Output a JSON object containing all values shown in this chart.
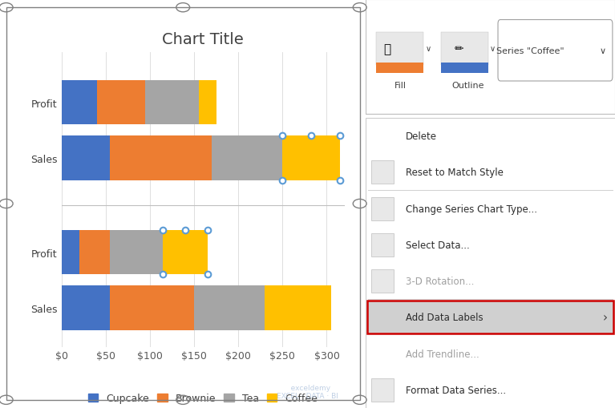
{
  "title": "Chart Title",
  "series": {
    "Cupcake": [
      40,
      55,
      20,
      55
    ],
    "Brownie": [
      55,
      115,
      35,
      95
    ],
    "Tea": [
      60,
      80,
      60,
      80
    ],
    "Coffee": [
      20,
      65,
      50,
      75
    ]
  },
  "colors": {
    "Cupcake": "#4472C4",
    "Brownie": "#ED7D31",
    "Tea": "#A5A5A5",
    "Coffee": "#FFC000"
  },
  "xlim": [
    0,
    320
  ],
  "xticks": [
    0,
    50,
    100,
    150,
    200,
    250,
    300
  ],
  "background_color": "#FFFFFF",
  "plot_bg_color": "#FFFFFF",
  "gridline_color": "#D9D9D9",
  "title_fontsize": 14,
  "axis_fontsize": 9,
  "legend_fontsize": 9,
  "context_menu_items": [
    "Delete",
    "Reset to Match Style",
    "Change Series Chart Type...",
    "Select Data...",
    "3-D Rotation...",
    "Add Data Labels",
    "Add Trendline...",
    "Format Data Series..."
  ],
  "highlight_item": "Add Data Labels",
  "series_label_text": "Series \"Coffee\"",
  "disabled_items": [
    "3-D Rotation...",
    "Add Trendline..."
  ],
  "sep_after": [
    1,
    4
  ],
  "has_icon": [
    "Reset to Match Style",
    "Change Series Chart Type...",
    "Select Data...",
    "3-D Rotation...",
    "Add Data Labels",
    "Format Data Series..."
  ],
  "has_arrow": [
    "Add Data Labels"
  ]
}
